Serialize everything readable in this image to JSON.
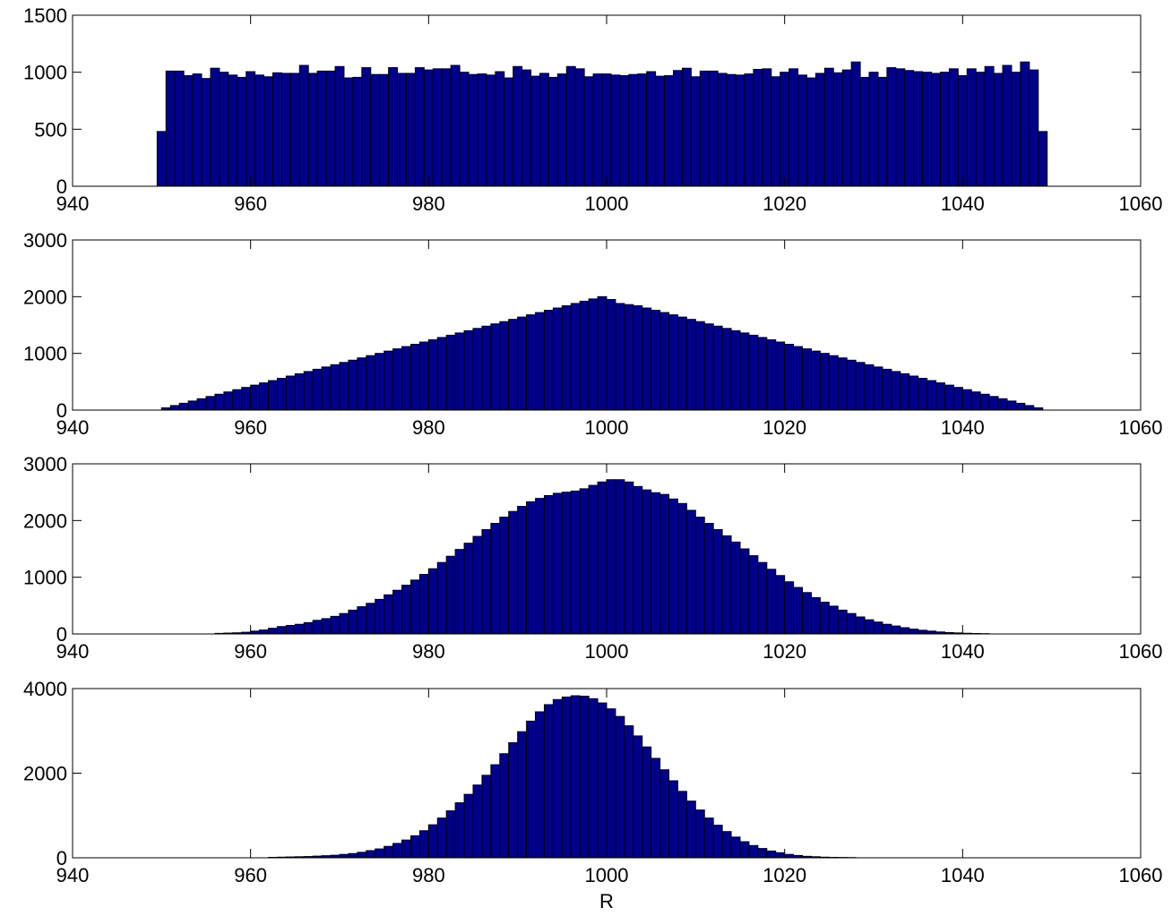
{
  "chart_data": [
    {
      "type": "bar",
      "title": "",
      "xlabel": "",
      "ylabel": "",
      "xlim": [
        940,
        1060
      ],
      "ylim": [
        0,
        1500
      ],
      "xticks": [
        "940",
        "960",
        "980",
        "1000",
        "1020",
        "1040",
        "1060"
      ],
      "yticks": [
        "0",
        "500",
        "1000",
        "1500"
      ],
      "grid": false,
      "bar_color": "#00008b",
      "bin_start": 949.5,
      "bin_width": 1.0,
      "values": [
        480,
        1010,
        1010,
        970,
        985,
        945,
        1035,
        1000,
        975,
        955,
        1005,
        975,
        960,
        995,
        990,
        990,
        1060,
        990,
        1010,
        1010,
        1050,
        950,
        955,
        1040,
        980,
        980,
        1040,
        990,
        990,
        1040,
        1020,
        1030,
        1030,
        1060,
        1000,
        980,
        985,
        975,
        1005,
        950,
        1050,
        1020,
        965,
        990,
        955,
        985,
        1050,
        1030,
        960,
        985,
        985,
        975,
        970,
        980,
        985,
        1005,
        965,
        970,
        1015,
        1035,
        960,
        1010,
        1010,
        990,
        980,
        975,
        985,
        1025,
        1030,
        960,
        1000,
        1030,
        975,
        950,
        990,
        1035,
        995,
        1020,
        1090,
        955,
        1000,
        955,
        1040,
        1030,
        1015,
        1005,
        1000,
        990,
        1000,
        1030,
        970,
        1030,
        1000,
        1050,
        990,
        1060,
        1000,
        1090,
        1020,
        480
      ]
    },
    {
      "type": "bar",
      "title": "",
      "xlabel": "",
      "ylabel": "",
      "xlim": [
        940,
        1060
      ],
      "ylim": [
        0,
        3000
      ],
      "xticks": [
        "940",
        "960",
        "980",
        "1000",
        "1020",
        "1040",
        "1060"
      ],
      "yticks": [
        "0",
        "1000",
        "2000",
        "3000"
      ],
      "grid": false,
      "bar_color": "#00008b",
      "bin_start": 950,
      "bin_width": 1.0,
      "values": [
        40,
        80,
        120,
        160,
        200,
        240,
        280,
        320,
        360,
        400,
        440,
        480,
        520,
        560,
        600,
        640,
        680,
        720,
        760,
        800,
        840,
        880,
        920,
        960,
        1000,
        1040,
        1080,
        1120,
        1160,
        1200,
        1240,
        1280,
        1320,
        1360,
        1400,
        1440,
        1480,
        1520,
        1560,
        1600,
        1640,
        1680,
        1720,
        1760,
        1800,
        1840,
        1880,
        1920,
        1960,
        2000,
        1950,
        1880,
        1860,
        1840,
        1800,
        1760,
        1720,
        1680,
        1640,
        1600,
        1560,
        1520,
        1480,
        1440,
        1400,
        1360,
        1320,
        1280,
        1240,
        1200,
        1160,
        1120,
        1080,
        1040,
        1000,
        960,
        920,
        880,
        840,
        800,
        760,
        720,
        680,
        640,
        600,
        560,
        520,
        480,
        440,
        400,
        360,
        320,
        280,
        240,
        200,
        160,
        120,
        80,
        40
      ]
    },
    {
      "type": "bar",
      "title": "",
      "xlabel": "",
      "ylabel": "",
      "xlim": [
        940,
        1060
      ],
      "ylim": [
        0,
        3000
      ],
      "xticks": [
        "940",
        "960",
        "980",
        "1000",
        "1020",
        "1040",
        "1060"
      ],
      "yticks": [
        "0",
        "1000",
        "2000",
        "3000"
      ],
      "grid": false,
      "bar_color": "#00008b",
      "bin_start": 956,
      "bin_width": 1.0,
      "values": [
        10,
        15,
        20,
        30,
        50,
        70,
        100,
        130,
        150,
        170,
        200,
        240,
        270,
        310,
        360,
        420,
        480,
        540,
        610,
        690,
        770,
        860,
        950,
        1050,
        1150,
        1260,
        1370,
        1490,
        1600,
        1720,
        1840,
        1950,
        2060,
        2160,
        2250,
        2330,
        2390,
        2440,
        2480,
        2500,
        2520,
        2560,
        2620,
        2680,
        2720,
        2720,
        2680,
        2600,
        2540,
        2490,
        2460,
        2380,
        2300,
        2180,
        2060,
        1950,
        1840,
        1730,
        1620,
        1500,
        1380,
        1260,
        1140,
        1030,
        920,
        820,
        730,
        640,
        560,
        490,
        420,
        360,
        300,
        250,
        210,
        170,
        140,
        110,
        85,
        65,
        50,
        35,
        25,
        18,
        12,
        8,
        5
      ]
    },
    {
      "type": "bar",
      "title": "",
      "xlabel": "R",
      "ylabel": "",
      "xlim": [
        940,
        1060
      ],
      "ylim": [
        0,
        4000
      ],
      "xticks": [
        "940",
        "960",
        "980",
        "1000",
        "1020",
        "1040",
        "1060"
      ],
      "yticks": [
        "0",
        "2000",
        "4000"
      ],
      "grid": false,
      "bar_color": "#00008b",
      "bin_start": 962,
      "bin_width": 1.0,
      "values": [
        10,
        15,
        20,
        25,
        30,
        40,
        50,
        60,
        80,
        100,
        130,
        170,
        210,
        270,
        340,
        420,
        520,
        640,
        780,
        940,
        1110,
        1300,
        1500,
        1720,
        1950,
        2200,
        2460,
        2720,
        2980,
        3230,
        3450,
        3620,
        3740,
        3800,
        3830,
        3820,
        3760,
        3660,
        3520,
        3340,
        3120,
        2880,
        2620,
        2350,
        2080,
        1820,
        1570,
        1340,
        1130,
        940,
        770,
        620,
        490,
        380,
        290,
        220,
        160,
        120,
        80,
        55,
        35,
        25,
        15,
        10,
        8,
        6
      ]
    }
  ]
}
